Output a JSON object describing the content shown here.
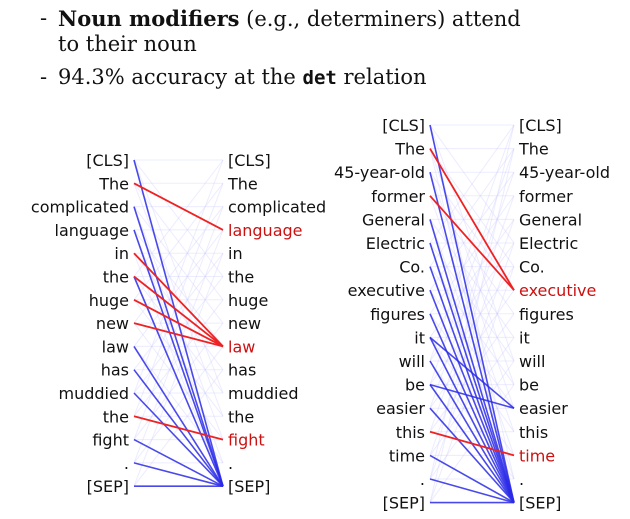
{
  "bullets": [
    {
      "dash": "-",
      "bold": "Noun modifiers",
      "rest": " (e.g., determiners) attend",
      "line2": "to their noun"
    },
    {
      "dash": "-",
      "pre": "94.3% accuracy at the ",
      "code": "det",
      "post": " relation"
    }
  ],
  "diagrams": [
    {
      "left_tokens": [
        "[CLS]",
        "The",
        "complicated",
        "language",
        "in",
        "the",
        "huge",
        "new",
        "law",
        "has",
        "muddied",
        "the",
        "fight",
        ".",
        "[SEP]"
      ],
      "right_tokens": [
        "[CLS]",
        "The",
        "complicated",
        "language",
        "in",
        "the",
        "huge",
        "new",
        "law",
        "has",
        "muddied",
        "the",
        "fight",
        ".",
        "[SEP]"
      ],
      "highlighted_right": [
        3,
        8,
        12
      ],
      "red_edges": [
        [
          1,
          3
        ],
        [
          4,
          8
        ],
        [
          5,
          8
        ],
        [
          6,
          8
        ],
        [
          7,
          8
        ],
        [
          11,
          12
        ]
      ],
      "blue_edges": [
        [
          0,
          14
        ],
        [
          3,
          14
        ],
        [
          8,
          14
        ],
        [
          9,
          14
        ],
        [
          10,
          14
        ],
        [
          12,
          14
        ],
        [
          13,
          14
        ],
        [
          14,
          14
        ],
        [
          2,
          14
        ],
        [
          5,
          14
        ]
      ],
      "colors": {
        "red": "#ee2222",
        "blue": "#2a2ae8"
      }
    },
    {
      "left_tokens": [
        "[CLS]",
        "The",
        "45-year-old",
        "former",
        "General",
        "Electric",
        "Co.",
        "executive",
        "figures",
        "it",
        "will",
        "be",
        "easier",
        "this",
        "time",
        ".",
        "[SEP]"
      ],
      "right_tokens": [
        "[CLS]",
        "The",
        "45-year-old",
        "former",
        "General",
        "Electric",
        "Co.",
        "executive",
        "figures",
        "it",
        "will",
        "be",
        "easier",
        "this",
        "time",
        ".",
        "[SEP]"
      ],
      "highlighted_right": [
        7,
        14
      ],
      "red_edges": [
        [
          1,
          7
        ],
        [
          3,
          7
        ],
        [
          13,
          14
        ]
      ],
      "blue_edges": [
        [
          4,
          16
        ],
        [
          5,
          16
        ],
        [
          6,
          16
        ],
        [
          7,
          16
        ],
        [
          8,
          16
        ],
        [
          9,
          16
        ],
        [
          10,
          16
        ],
        [
          11,
          16
        ],
        [
          12,
          16
        ],
        [
          14,
          16
        ],
        [
          15,
          16
        ],
        [
          16,
          16
        ],
        [
          9,
          12
        ],
        [
          11,
          12
        ],
        [
          2,
          16
        ],
        [
          0,
          16
        ]
      ],
      "colors": {
        "red": "#ee2222",
        "blue": "#2a2ae8"
      }
    }
  ]
}
